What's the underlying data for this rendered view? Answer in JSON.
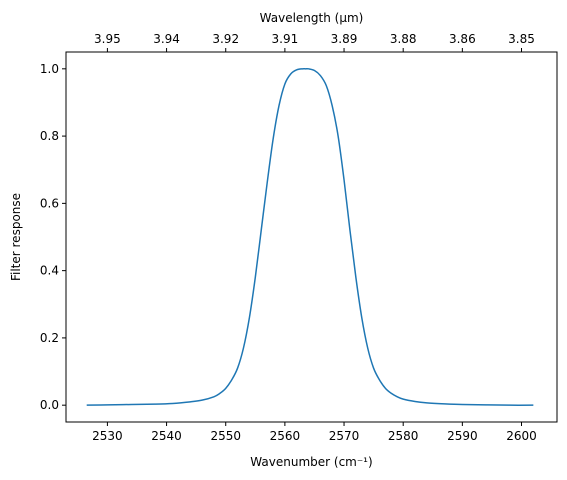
{
  "chart_data": {
    "type": "line",
    "title": "",
    "xlabel": "Wavenumber (cm⁻¹)",
    "x2label": "Wavelength (μm)",
    "ylabel": "Filter response",
    "xlim": [
      2523,
      2606
    ],
    "ylim": [
      -0.05,
      1.05
    ],
    "grid": false,
    "legend": "none",
    "line_color": "#1f77b4",
    "x_ticks": [
      2530,
      2540,
      2550,
      2560,
      2570,
      2580,
      2590,
      2600
    ],
    "x_tick_labels": [
      "2530",
      "2540",
      "2550",
      "2560",
      "2570",
      "2580",
      "2590",
      "2600"
    ],
    "y_ticks": [
      0.0,
      0.2,
      0.4,
      0.6,
      0.8,
      1.0
    ],
    "y_tick_labels": [
      "0.0",
      "0.2",
      "0.4",
      "0.6",
      "0.8",
      "1.0"
    ],
    "x2_ticks": [
      2530,
      2540,
      2550,
      2560,
      2570,
      2580,
      2590,
      2600
    ],
    "x2_tick_labels": [
      "3.95",
      "3.94",
      "3.92",
      "3.91",
      "3.89",
      "3.88",
      "3.86",
      "3.85"
    ],
    "series": [
      {
        "x": [
          2526.5,
          2530,
          2534,
          2538,
          2541,
          2544,
          2546,
          2548,
          2549,
          2550,
          2551,
          2552,
          2553,
          2554,
          2555,
          2556,
          2557,
          2558,
          2559,
          2560,
          2561,
          2562,
          2563,
          2563.5,
          2564,
          2565,
          2566,
          2567,
          2568,
          2569,
          2570,
          2571,
          2572,
          2573,
          2574,
          2575,
          2576,
          2577,
          2578,
          2579,
          2580,
          2582,
          2584,
          2587,
          2590,
          2594,
          2598,
          2602
        ],
        "y": [
          0.0,
          0.001,
          0.002,
          0.003,
          0.005,
          0.01,
          0.015,
          0.025,
          0.035,
          0.05,
          0.075,
          0.11,
          0.17,
          0.26,
          0.38,
          0.52,
          0.66,
          0.79,
          0.89,
          0.955,
          0.985,
          0.997,
          1.0,
          1.0,
          1.0,
          0.995,
          0.98,
          0.95,
          0.89,
          0.8,
          0.67,
          0.52,
          0.38,
          0.26,
          0.17,
          0.11,
          0.075,
          0.05,
          0.035,
          0.025,
          0.018,
          0.011,
          0.007,
          0.004,
          0.002,
          0.001,
          0.0,
          0.0
        ]
      }
    ]
  }
}
